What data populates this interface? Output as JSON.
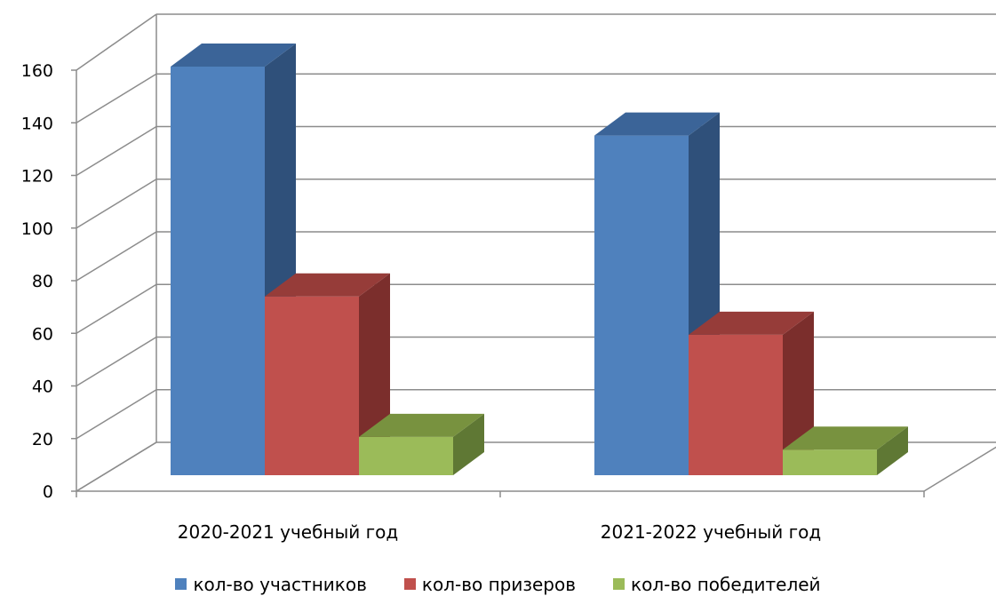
{
  "chart_data": {
    "type": "bar",
    "title": "",
    "xlabel": "",
    "ylabel": "",
    "categories": [
      "2020-2021 учебный год",
      "2021-2022 учебный год"
    ],
    "series": [
      {
        "name": "кол-во участников",
        "values": [
          160,
          133
        ],
        "color": "#4f81bd",
        "side_color": "#2f507a",
        "top_color": "#3b6498"
      },
      {
        "name": "кол-во призеров",
        "values": [
          70,
          55
        ],
        "color": "#c0504d",
        "side_color": "#7b2e2c",
        "top_color": "#963c39"
      },
      {
        "name": "кол-во победителей",
        "values": [
          15,
          10
        ],
        "color": "#9bbb59",
        "side_color": "#5f7834",
        "top_color": "#78923f"
      }
    ],
    "ylim": [
      0,
      160
    ],
    "yticks": [
      "0",
      "20",
      "40",
      "60",
      "80",
      "100",
      "120",
      "140",
      "160"
    ],
    "grid": true,
    "legend_position": "bottom",
    "projection": "3d"
  }
}
